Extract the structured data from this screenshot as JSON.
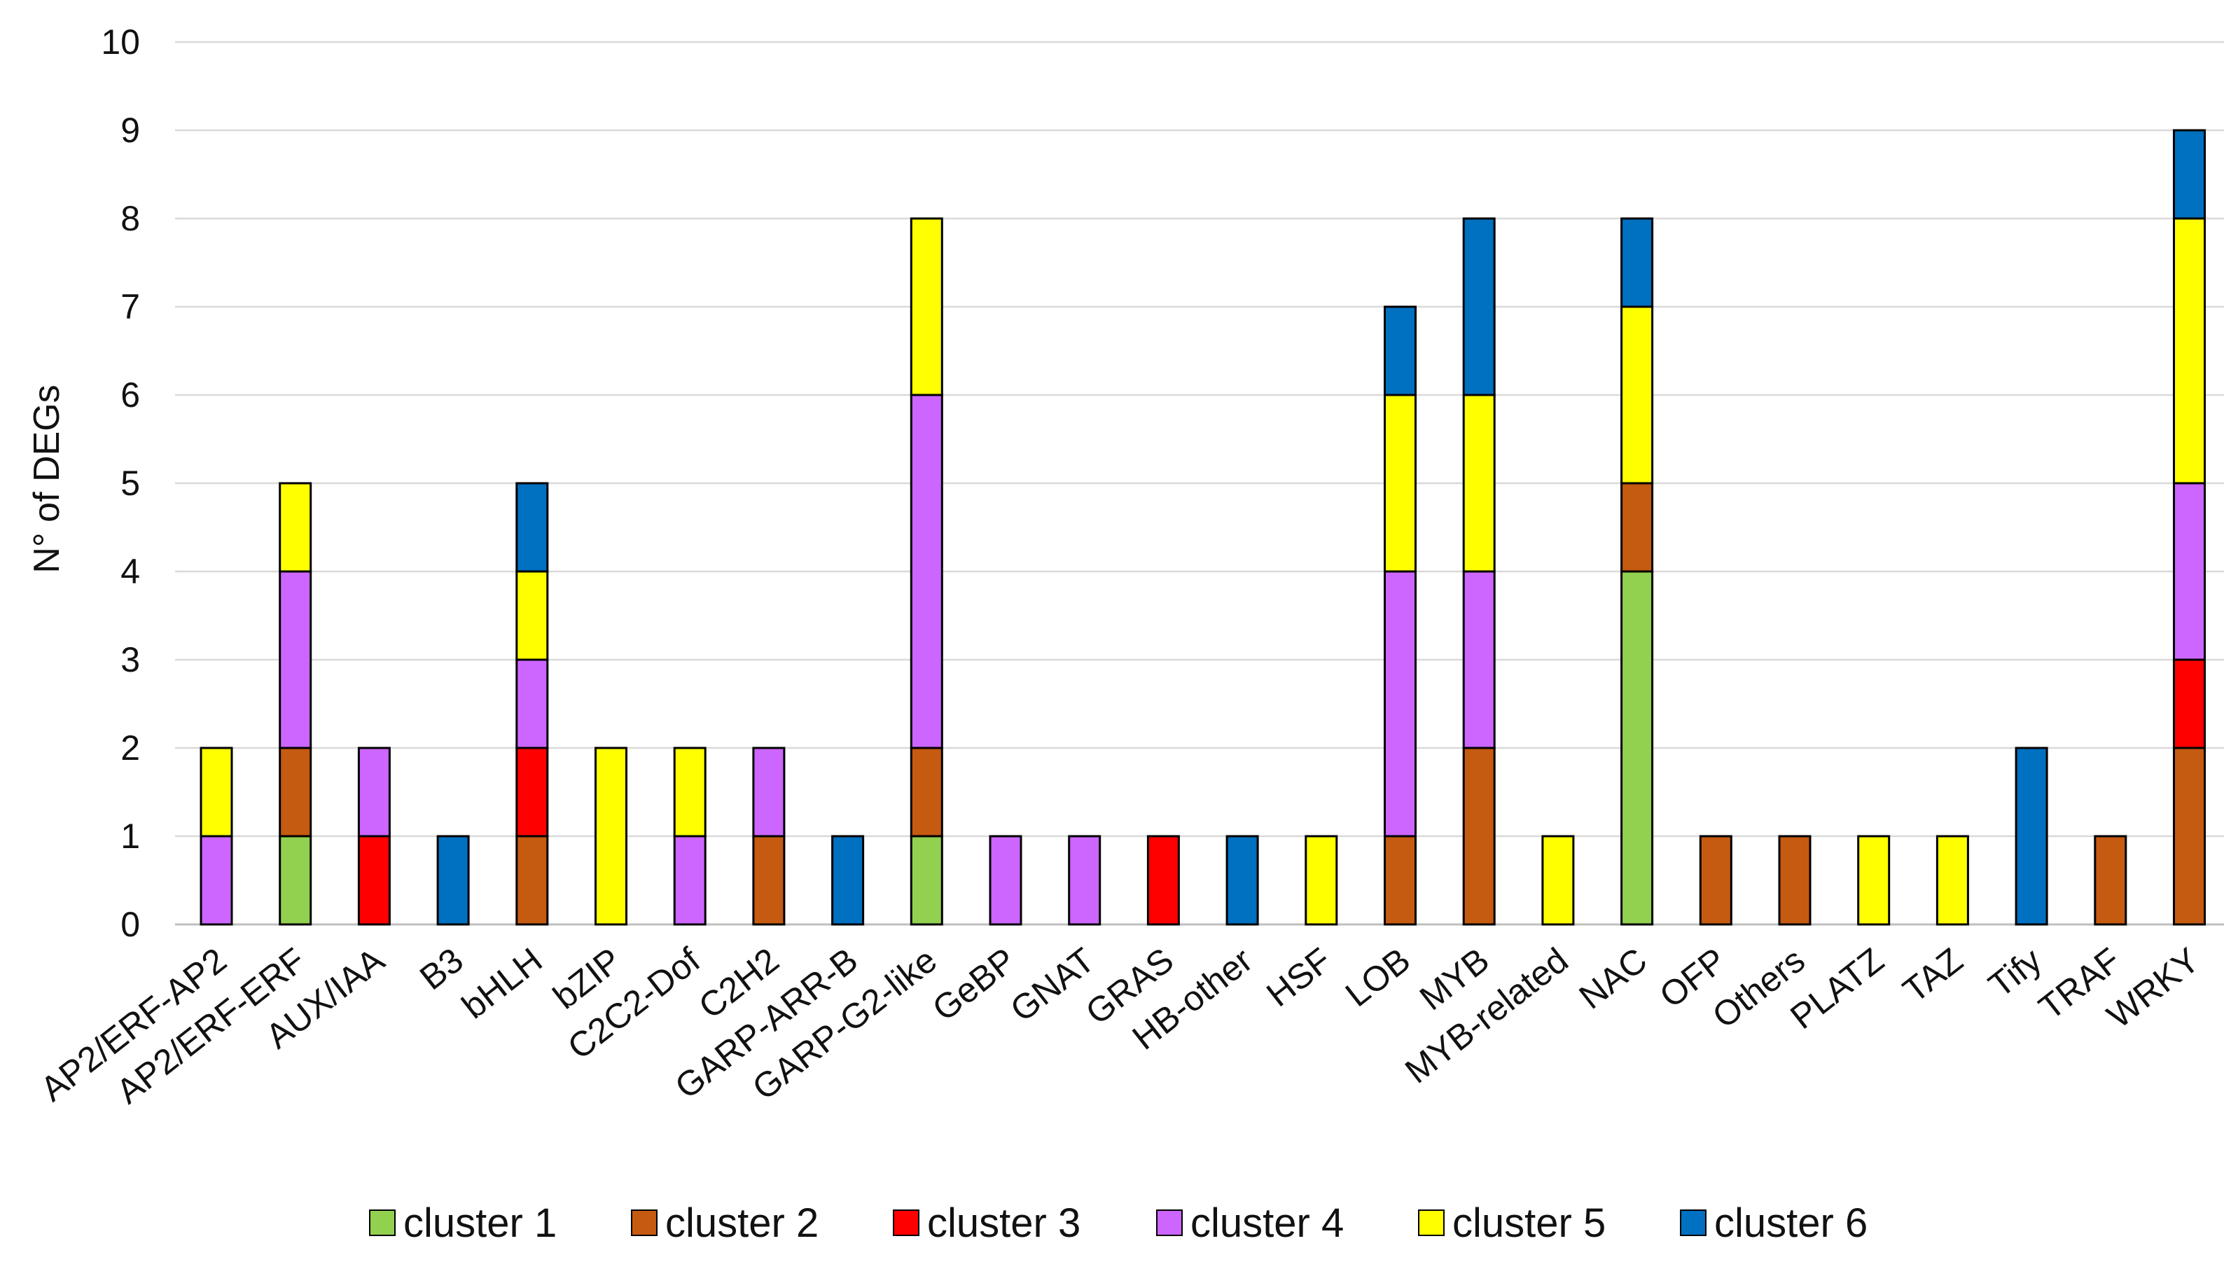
{
  "chart_data": {
    "type": "bar",
    "stacked": true,
    "title": "",
    "xlabel": "",
    "ylabel": "N° of DEGs",
    "ylim": [
      0,
      10
    ],
    "yticks": [
      0,
      1,
      2,
      3,
      4,
      5,
      6,
      7,
      8,
      9,
      10
    ],
    "grid": true,
    "legend_position": "bottom",
    "categories": [
      "AP2/ERF-AP2",
      "AP2/ERF-ERF",
      "AUX/IAA",
      "B3",
      "bHLH",
      "bZIP",
      "C2C2-Dof",
      "C2H2",
      "GARP-ARR-B",
      "GARP-G2-like",
      "GeBP",
      "GNAT",
      "GRAS",
      "HB-other",
      "HSF",
      "LOB",
      "MYB",
      "MYB-related",
      "NAC",
      "OFP",
      "Others",
      "PLATZ",
      "TAZ",
      "Tify",
      "TRAF",
      "WRKY"
    ],
    "series": [
      {
        "name": "cluster 1",
        "color": "#92d050",
        "values": [
          0,
          1,
          0,
          0,
          0,
          0,
          0,
          0,
          0,
          1,
          0,
          0,
          0,
          0,
          0,
          0,
          0,
          0,
          4,
          0,
          0,
          0,
          0,
          0,
          0,
          0
        ]
      },
      {
        "name": "cluster 2",
        "color": "#c55a11",
        "values": [
          0,
          1,
          0,
          0,
          1,
          0,
          0,
          1,
          0,
          1,
          0,
          0,
          0,
          0,
          0,
          1,
          2,
          0,
          1,
          1,
          1,
          0,
          0,
          0,
          1,
          2
        ]
      },
      {
        "name": "cluster 3",
        "color": "#ff0000",
        "values": [
          0,
          0,
          1,
          0,
          1,
          0,
          0,
          0,
          0,
          0,
          0,
          0,
          1,
          0,
          0,
          0,
          0,
          0,
          0,
          0,
          0,
          0,
          0,
          0,
          0,
          1
        ]
      },
      {
        "name": "cluster 4",
        "color": "#cc66ff",
        "values": [
          1,
          2,
          1,
          0,
          1,
          0,
          1,
          1,
          0,
          4,
          1,
          1,
          0,
          0,
          0,
          3,
          2,
          0,
          0,
          0,
          0,
          0,
          0,
          0,
          0,
          2
        ]
      },
      {
        "name": "cluster 5",
        "color": "#ffff00",
        "values": [
          1,
          1,
          0,
          0,
          1,
          2,
          1,
          0,
          0,
          2,
          0,
          0,
          0,
          0,
          1,
          2,
          2,
          1,
          2,
          0,
          0,
          1,
          1,
          0,
          0,
          3
        ]
      },
      {
        "name": "cluster 6",
        "color": "#0070c0",
        "values": [
          0,
          0,
          0,
          1,
          1,
          0,
          0,
          0,
          1,
          0,
          0,
          0,
          0,
          1,
          0,
          1,
          2,
          0,
          1,
          0,
          0,
          0,
          0,
          2,
          0,
          1
        ]
      }
    ]
  }
}
